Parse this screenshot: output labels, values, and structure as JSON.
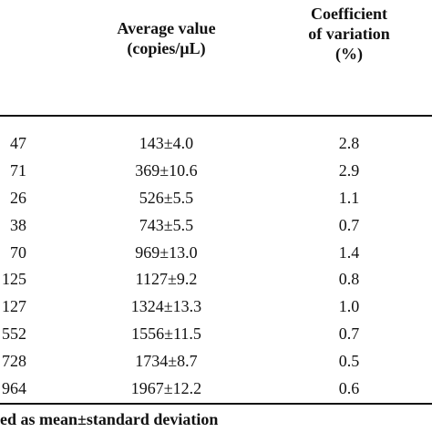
{
  "headers": {
    "average": [
      "Average value",
      "(copies/μL)"
    ],
    "cv": [
      "Coefficient",
      "of variation",
      "(%)"
    ]
  },
  "rows": [
    {
      "first": "47",
      "average": "143±4.0",
      "cv": "2.8"
    },
    {
      "first": "71",
      "average": "369±10.6",
      "cv": "2.9"
    },
    {
      "first": "26",
      "average": "526±5.5",
      "cv": "1.1"
    },
    {
      "first": "38",
      "average": "743±5.5",
      "cv": "0.7"
    },
    {
      "first": "70",
      "average": "969±13.0",
      "cv": "1.4"
    },
    {
      "first": "125",
      "average": "1127±9.2",
      "cv": "0.8"
    },
    {
      "first": "127",
      "average": "1324±13.3",
      "cv": "1.0"
    },
    {
      "first": "552",
      "average": "1556±11.5",
      "cv": "0.7"
    },
    {
      "first": "728",
      "average": "1734±8.7",
      "cv": "0.5"
    },
    {
      "first": "964",
      "average": "1967±12.2",
      "cv": "0.6"
    }
  ],
  "footnote": "ed as mean±standard deviation"
}
